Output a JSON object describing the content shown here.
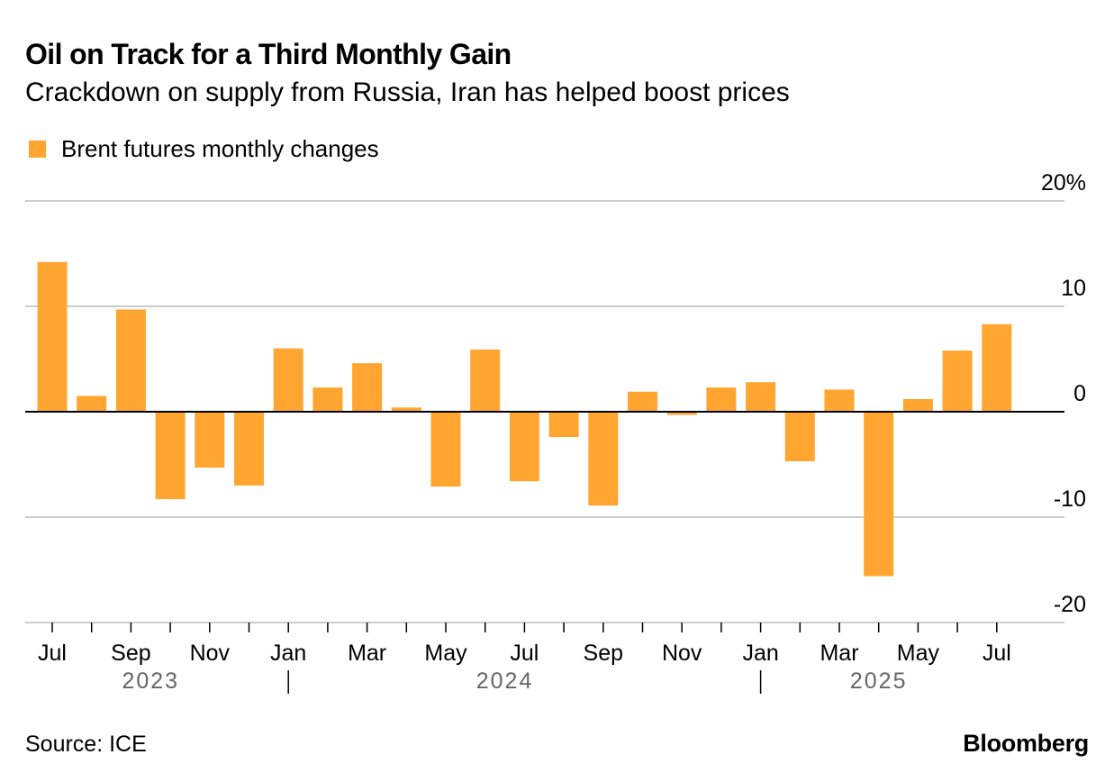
{
  "header": {
    "title": "Oil on Track for a Third Monthly Gain",
    "subtitle": "Crackdown on supply from Russia, Iran has helped boost prices"
  },
  "footer": {
    "source": "Source: ICE",
    "brand": "Bloomberg"
  },
  "colors": {
    "bar": "#FFA530",
    "gridline": "#cccccc",
    "zero_line": "#000000",
    "year_label": "#666666"
  },
  "chart_data": {
    "type": "bar",
    "title": "Oil on Track for a Third Monthly Gain",
    "subtitle": "Crackdown on supply from Russia, Iran has helped boost prices",
    "legend_position": "top-left",
    "grid": true,
    "y_axis_side": "right",
    "ylim": [
      -20,
      20
    ],
    "y_ticks": [
      20,
      10,
      0,
      -10,
      -20
    ],
    "y_tick_labels": [
      "20%",
      "10",
      "0",
      "-10",
      "-20"
    ],
    "categories": [
      "2023-07",
      "2023-08",
      "2023-09",
      "2023-10",
      "2023-11",
      "2023-12",
      "2024-01",
      "2024-02",
      "2024-03",
      "2024-04",
      "2024-05",
      "2024-06",
      "2024-07",
      "2024-08",
      "2024-09",
      "2024-10",
      "2024-11",
      "2024-12",
      "2025-01",
      "2025-02",
      "2025-03",
      "2025-04",
      "2025-05",
      "2025-06",
      "2025-07"
    ],
    "x_tick_labels": [
      {
        "category": "2023-07",
        "label": "Jul"
      },
      {
        "category": "2023-09",
        "label": "Sep"
      },
      {
        "category": "2023-11",
        "label": "Nov"
      },
      {
        "category": "2024-01",
        "label": "Jan"
      },
      {
        "category": "2024-03",
        "label": "Mar"
      },
      {
        "category": "2024-05",
        "label": "May"
      },
      {
        "category": "2024-07",
        "label": "Jul"
      },
      {
        "category": "2024-09",
        "label": "Sep"
      },
      {
        "category": "2024-11",
        "label": "Nov"
      },
      {
        "category": "2025-01",
        "label": "Jan"
      },
      {
        "category": "2025-03",
        "label": "Mar"
      },
      {
        "category": "2025-05",
        "label": "May"
      },
      {
        "category": "2025-07",
        "label": "Jul"
      }
    ],
    "year_labels": [
      {
        "label": "2023",
        "from": "2023-07",
        "to": "2023-12"
      },
      {
        "label": "2024",
        "from": "2024-01",
        "to": "2024-12"
      },
      {
        "label": "2025",
        "from": "2025-01",
        "to": "2025-07"
      }
    ],
    "series": [
      {
        "name": "Brent futures monthly changes",
        "values": [
          14.2,
          1.5,
          9.7,
          -8.3,
          -5.3,
          -7.0,
          6.0,
          2.3,
          4.6,
          0.4,
          -7.1,
          5.9,
          -6.6,
          -2.4,
          -8.9,
          1.9,
          -0.3,
          2.3,
          2.8,
          -4.7,
          2.1,
          -15.6,
          1.2,
          5.8,
          8.3
        ]
      }
    ]
  }
}
